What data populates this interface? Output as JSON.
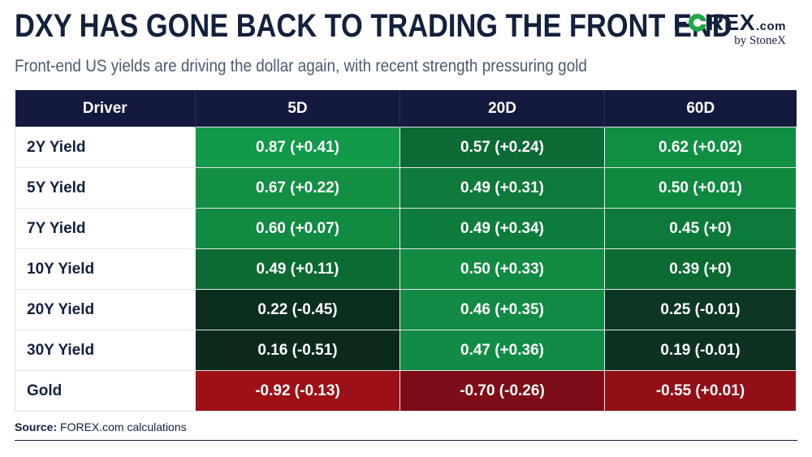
{
  "header": {
    "title": "DXY HAS GONE BACK TO TRADING THE FRONT END",
    "subtitle": "Front-end US yields are driving the dollar again, with recent strength pressuring gold"
  },
  "logo": {
    "pre": "F",
    "post": "REX",
    "suffix": ".com",
    "byline": "by StoneX",
    "accent_color": "#1fa64a"
  },
  "chart_data": {
    "type": "table",
    "columns": [
      "Driver",
      "5D",
      "20D",
      "60D"
    ],
    "rows": [
      {
        "driver": "2Y Yield",
        "cells": [
          {
            "text": "0.87 (+0.41)",
            "color": "#12994a"
          },
          {
            "text": "0.57 (+0.24)",
            "color": "#0c6a35"
          },
          {
            "text": "0.62 (+0.02)",
            "color": "#108f42"
          }
        ]
      },
      {
        "driver": "5Y Yield",
        "cells": [
          {
            "text": "0.67 (+0.22)",
            "color": "#138f44"
          },
          {
            "text": "0.49 (+0.31)",
            "color": "#0e7a3b"
          },
          {
            "text": "0.50 (+0.01)",
            "color": "#0f893f"
          }
        ]
      },
      {
        "driver": "7Y Yield",
        "cells": [
          {
            "text": "0.60 (+0.07)",
            "color": "#118a42"
          },
          {
            "text": "0.49 (+0.34)",
            "color": "#0e7c3c"
          },
          {
            "text": "0.45 (+0)",
            "color": "#0d7a39"
          }
        ]
      },
      {
        "driver": "10Y Yield",
        "cells": [
          {
            "text": "0.49 (+0.11)",
            "color": "#0b6b33"
          },
          {
            "text": "0.50 (+0.33)",
            "color": "#118a42"
          },
          {
            "text": "0.39 (+0)",
            "color": "#0c6a33"
          }
        ]
      },
      {
        "driver": "20Y Yield",
        "cells": [
          {
            "text": "0.22 (-0.45)",
            "color": "#0c2e1e"
          },
          {
            "text": "0.46 (+0.35)",
            "color": "#128a43"
          },
          {
            "text": "0.25 (-0.01)",
            "color": "#0e3624"
          }
        ]
      },
      {
        "driver": "30Y Yield",
        "cells": [
          {
            "text": "0.16 (-0.51)",
            "color": "#0b2a1b"
          },
          {
            "text": "0.47 (+0.36)",
            "color": "#128c44"
          },
          {
            "text": "0.19 (-0.01)",
            "color": "#0d3222"
          }
        ]
      },
      {
        "driver": "Gold",
        "cells": [
          {
            "text": "-0.92 (-0.13)",
            "color": "#9c1016"
          },
          {
            "text": "-0.70 (-0.26)",
            "color": "#7d0d16"
          },
          {
            "text": "-0.55 (+0.01)",
            "color": "#920f17"
          }
        ]
      }
    ]
  },
  "footer": {
    "source_label": "Source:",
    "source_text": " FOREX.com calculations"
  }
}
